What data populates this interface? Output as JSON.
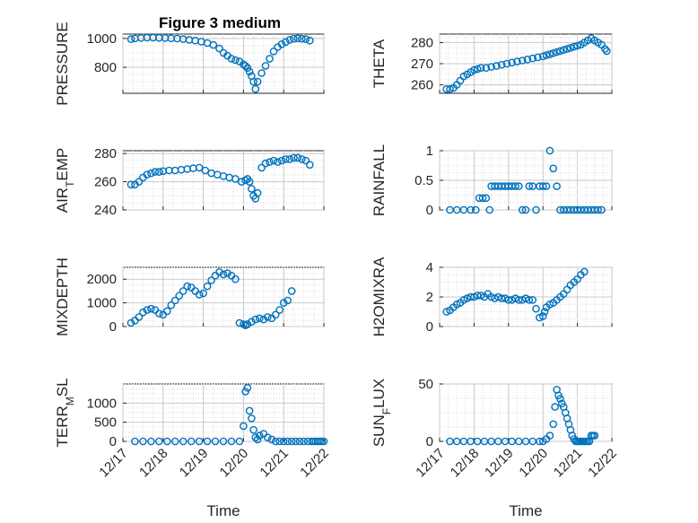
{
  "figure": {
    "title": "Figure 3 medium",
    "series_color": "#0072BD"
  },
  "chart_data": [
    {
      "type": "scatter",
      "ylabel": "PRESSURE",
      "xlabel": "",
      "xlim": [
        0,
        5
      ],
      "ylim": [
        620,
        1030
      ],
      "yticks": [
        800,
        1000
      ],
      "xtick_labels": [],
      "grid": true,
      "x": [
        0.2,
        0.3,
        0.45,
        0.6,
        0.75,
        0.9,
        1.05,
        1.2,
        1.35,
        1.5,
        1.65,
        1.8,
        1.95,
        2.1,
        2.25,
        2.4,
        2.5,
        2.6,
        2.7,
        2.8,
        2.9,
        3.0,
        3.05,
        3.1,
        3.15,
        3.2,
        3.25,
        3.3,
        3.35,
        3.45,
        3.55,
        3.65,
        3.75,
        3.85,
        3.95,
        4.05,
        4.15,
        4.25,
        4.35,
        4.45,
        4.55,
        4.65
      ],
      "y": [
        995,
        1000,
        1003,
        1005,
        1005,
        1004,
        1003,
        1001,
        999,
        995,
        990,
        985,
        978,
        968,
        955,
        930,
        900,
        880,
        860,
        850,
        840,
        820,
        810,
        795,
        770,
        740,
        700,
        650,
        700,
        760,
        810,
        860,
        910,
        940,
        960,
        975,
        990,
        998,
        1000,
        998,
        995,
        985
      ]
    },
    {
      "type": "scatter",
      "ylabel": "THETA",
      "xlabel": "",
      "xlim": [
        0,
        5
      ],
      "ylim": [
        256,
        284
      ],
      "yticks": [
        260,
        270,
        280
      ],
      "xtick_labels": [],
      "grid": true,
      "x": [
        0.2,
        0.3,
        0.4,
        0.5,
        0.6,
        0.7,
        0.8,
        0.9,
        1.0,
        1.1,
        1.2,
        1.35,
        1.5,
        1.65,
        1.8,
        1.95,
        2.1,
        2.25,
        2.4,
        2.55,
        2.7,
        2.85,
        3.0,
        3.1,
        3.2,
        3.3,
        3.4,
        3.5,
        3.6,
        3.7,
        3.8,
        3.9,
        4.0,
        4.1,
        4.2,
        4.3,
        4.4,
        4.5,
        4.6,
        4.7,
        4.8,
        4.85
      ],
      "y": [
        258,
        258,
        258.5,
        260,
        262,
        264,
        265,
        266,
        267,
        267.5,
        268,
        268,
        268.5,
        269,
        269.5,
        270,
        270.5,
        271,
        271.5,
        272,
        272.5,
        273,
        273.5,
        274,
        274.5,
        275,
        275.5,
        276,
        276.5,
        277,
        277.5,
        278,
        278.5,
        279,
        280,
        281,
        282,
        281,
        280,
        279,
        277,
        276
      ]
    },
    {
      "type": "scatter",
      "ylabel": "AIR_TEMP",
      "xlabel": "",
      "xlim": [
        0,
        5
      ],
      "ylim": [
        240,
        282
      ],
      "yticks": [
        240,
        260,
        280
      ],
      "xtick_labels": [],
      "grid": true,
      "x": [
        0.2,
        0.3,
        0.4,
        0.5,
        0.6,
        0.7,
        0.8,
        0.9,
        1.0,
        1.15,
        1.3,
        1.45,
        1.6,
        1.75,
        1.9,
        2.05,
        2.2,
        2.35,
        2.5,
        2.65,
        2.8,
        2.95,
        3.05,
        3.1,
        3.15,
        3.2,
        3.25,
        3.3,
        3.35,
        3.45,
        3.55,
        3.65,
        3.75,
        3.85,
        3.95,
        4.05,
        4.15,
        4.25,
        4.35,
        4.45,
        4.55,
        4.65
      ],
      "y": [
        258,
        258,
        260,
        263,
        265,
        266,
        267,
        267,
        267.5,
        268,
        268,
        268.5,
        269,
        269.5,
        270,
        268,
        266,
        265,
        264,
        263,
        262,
        260,
        261,
        262,
        260,
        255,
        250,
        248,
        252,
        270,
        273,
        274,
        275,
        274,
        275,
        276,
        276,
        277,
        277,
        276,
        275,
        272
      ]
    },
    {
      "type": "scatter",
      "ylabel": "RAINFALL",
      "xlabel": "",
      "xlim": [
        0,
        5
      ],
      "ylim": [
        0,
        1
      ],
      "yticks": [
        0,
        0.5,
        1
      ],
      "xtick_labels": [],
      "grid": true,
      "x": [
        0.3,
        0.5,
        0.7,
        0.9,
        1.05,
        1.15,
        1.25,
        1.35,
        1.45,
        1.5,
        1.6,
        1.7,
        1.8,
        1.9,
        2.0,
        2.1,
        2.2,
        2.3,
        2.4,
        2.5,
        2.6,
        2.7,
        2.8,
        2.9,
        3.0,
        3.1,
        3.2,
        3.3,
        3.4,
        3.5,
        3.6,
        3.7,
        3.8,
        3.9,
        4.0,
        4.1,
        4.2,
        4.3,
        4.4,
        4.5,
        4.6,
        4.7
      ],
      "y": [
        0,
        0,
        0,
        0,
        0,
        0.2,
        0.2,
        0.2,
        0,
        0.4,
        0.4,
        0.4,
        0.4,
        0.4,
        0.4,
        0.4,
        0.4,
        0.4,
        0,
        0,
        0.4,
        0.4,
        0,
        0.4,
        0.4,
        0.4,
        1.0,
        0.7,
        0.4,
        0,
        0,
        0,
        0,
        0,
        0,
        0,
        0,
        0,
        0,
        0,
        0,
        0
      ]
    },
    {
      "type": "scatter",
      "ylabel": "MIXDEPTH",
      "xlabel": "",
      "xlim": [
        0,
        5
      ],
      "ylim": [
        0,
        2500
      ],
      "yticks": [
        0,
        1000,
        2000
      ],
      "xtick_labels": [],
      "grid": true,
      "x": [
        0.2,
        0.3,
        0.4,
        0.5,
        0.6,
        0.7,
        0.8,
        0.9,
        1.0,
        1.1,
        1.2,
        1.3,
        1.4,
        1.5,
        1.6,
        1.7,
        1.8,
        1.9,
        2.0,
        2.1,
        2.2,
        2.3,
        2.4,
        2.5,
        2.6,
        2.7,
        2.8,
        2.9,
        3.0,
        3.05,
        3.1,
        3.2,
        3.3,
        3.4,
        3.5,
        3.6,
        3.7,
        3.8,
        3.9,
        4.0,
        4.1,
        4.2
      ],
      "y": [
        150,
        250,
        400,
        600,
        700,
        750,
        700,
        550,
        500,
        650,
        900,
        1100,
        1300,
        1500,
        1700,
        1650,
        1500,
        1350,
        1400,
        1700,
        1950,
        2150,
        2300,
        2200,
        2250,
        2150,
        2000,
        150,
        100,
        50,
        100,
        200,
        300,
        350,
        300,
        400,
        350,
        500,
        700,
        1000,
        1100,
        1500
      ]
    },
    {
      "type": "scatter",
      "ylabel": "H2OMIXRA",
      "xlabel": "",
      "xlim": [
        0,
        5
      ],
      "ylim": [
        0,
        4
      ],
      "yticks": [
        0,
        2,
        4
      ],
      "xtick_labels": [],
      "grid": true,
      "x": [
        0.2,
        0.3,
        0.4,
        0.5,
        0.6,
        0.7,
        0.8,
        0.9,
        1.0,
        1.1,
        1.2,
        1.3,
        1.4,
        1.5,
        1.6,
        1.7,
        1.8,
        1.9,
        2.0,
        2.1,
        2.2,
        2.3,
        2.4,
        2.5,
        2.6,
        2.7,
        2.8,
        2.9,
        3.0,
        3.05,
        3.1,
        3.2,
        3.3,
        3.4,
        3.5,
        3.6,
        3.7,
        3.8,
        3.9,
        4.0,
        4.1,
        4.2
      ],
      "y": [
        1.0,
        1.1,
        1.3,
        1.5,
        1.6,
        1.8,
        1.9,
        2.0,
        2.0,
        2.1,
        2.1,
        2.0,
        2.2,
        2.0,
        1.9,
        2.0,
        1.9,
        1.9,
        1.8,
        1.8,
        1.9,
        1.8,
        1.8,
        1.9,
        1.8,
        1.8,
        1.2,
        0.6,
        0.7,
        1.0,
        1.3,
        1.5,
        1.6,
        1.8,
        2.0,
        2.2,
        2.5,
        2.8,
        3.0,
        3.2,
        3.5,
        3.7
      ]
    },
    {
      "type": "scatter",
      "ylabel": "TERR_MSL",
      "xlabel": "Time",
      "xlim": [
        0,
        5
      ],
      "ylim": [
        0,
        1500
      ],
      "yticks": [
        0,
        500,
        1000
      ],
      "xtick_labels": [
        "12/17",
        "12/18",
        "12/19",
        "12/20",
        "12/21",
        "12/22"
      ],
      "grid": true,
      "x": [
        0.3,
        0.5,
        0.7,
        0.9,
        1.1,
        1.3,
        1.5,
        1.7,
        1.9,
        2.1,
        2.3,
        2.5,
        2.7,
        2.9,
        3.0,
        3.05,
        3.1,
        3.15,
        3.2,
        3.25,
        3.3,
        3.35,
        3.4,
        3.5,
        3.6,
        3.7,
        3.8,
        3.9,
        4.0,
        4.1,
        4.2,
        4.3,
        4.4,
        4.5,
        4.6,
        4.7,
        4.75,
        4.8,
        4.85,
        4.9,
        4.95,
        5.0
      ],
      "y": [
        0,
        0,
        0,
        0,
        0,
        0,
        0,
        0,
        0,
        0,
        0,
        0,
        0,
        0,
        400,
        1300,
        1400,
        800,
        600,
        300,
        100,
        50,
        150,
        200,
        100,
        50,
        0,
        0,
        0,
        0,
        0,
        0,
        0,
        0,
        0,
        0,
        0,
        0,
        0,
        0,
        0,
        0
      ]
    },
    {
      "type": "scatter",
      "ylabel": "SUN_FLUX",
      "xlabel": "Time",
      "xlim": [
        0,
        5
      ],
      "ylim": [
        0,
        50
      ],
      "yticks": [
        0,
        50
      ],
      "xtick_labels": [
        "12/17",
        "12/18",
        "12/19",
        "12/20",
        "12/21",
        "12/22"
      ],
      "grid": true,
      "x": [
        0.3,
        0.5,
        0.7,
        0.9,
        1.1,
        1.3,
        1.5,
        1.7,
        1.9,
        2.1,
        2.3,
        2.5,
        2.7,
        2.9,
        3.0,
        3.1,
        3.2,
        3.3,
        3.35,
        3.4,
        3.45,
        3.5,
        3.55,
        3.6,
        3.65,
        3.7,
        3.75,
        3.8,
        3.85,
        3.9,
        3.95,
        4.0,
        4.05,
        4.1,
        4.15,
        4.2,
        4.25,
        4.3,
        4.35,
        4.4,
        4.45,
        4.5
      ],
      "y": [
        0,
        0,
        0,
        0,
        0,
        0,
        0,
        0,
        0,
        0,
        0,
        0,
        0,
        0,
        0,
        2,
        5,
        15,
        30,
        45,
        40,
        37,
        33,
        30,
        25,
        20,
        15,
        10,
        5,
        2,
        0,
        0,
        0,
        0,
        0,
        0,
        0,
        0,
        0,
        5,
        5,
        5
      ]
    }
  ]
}
